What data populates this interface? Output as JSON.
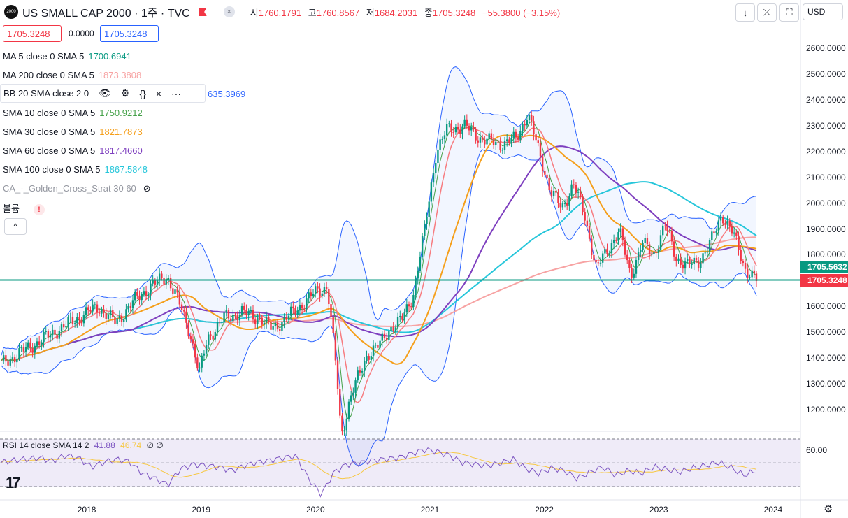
{
  "header": {
    "logo_text": "2000",
    "title": "US SMALL CAP 2000 · 1주 · TVC",
    "close_btn": "×",
    "ohlc": [
      {
        "k": "시",
        "v": "1760.1791"
      },
      {
        "k": "고",
        "v": "1760.8567"
      },
      {
        "k": "저",
        "v": "1684.2031"
      },
      {
        "k": "종",
        "v": "1705.3248"
      }
    ],
    "change": "−55.3800 (−3.15%)"
  },
  "toolbar": {
    "down": "↓",
    "collapse": "⤫",
    "fullscreen": "⛶",
    "currency": "USD"
  },
  "price_boxes": {
    "sell": "1705.3248",
    "spread": "0.0000",
    "buy": "1705.3248"
  },
  "legend": {
    "ma5": {
      "label": "MA 5 close 0 SMA 5",
      "value": "1700.6941"
    },
    "ma200": {
      "label": "MA 200 close 0 SMA 5",
      "value": "1873.3808"
    },
    "bb": {
      "label": "BB 20 SMA close 2 0",
      "value": "635.3969",
      "icons": [
        "👁",
        "⚙",
        "{}",
        "×",
        "···"
      ]
    },
    "sma10": {
      "label": "SMA 10 close 0 SMA 5",
      "value": "1750.9212"
    },
    "sma30": {
      "label": "SMA 30 close 0 SMA 5",
      "value": "1821.7873"
    },
    "sma60": {
      "label": "SMA 60 close 0 SMA 5",
      "value": "1817.4660"
    },
    "sma100": {
      "label": "SMA 100 close 0 SMA 5",
      "value": "1867.5848"
    },
    "strat": {
      "label": "CA_-_Golden_Cross_Strat 30 60"
    },
    "volume": {
      "label": "볼륨",
      "warn": "!"
    },
    "collapse": "^"
  },
  "rsi_legend": {
    "label": "RSI 14 close SMA 14 2",
    "v1": "41.88",
    "v2": "46.74",
    "v3": "∅ ∅"
  },
  "rsi_axis": {
    "level": "60.00"
  },
  "price_axis": [
    "2600.0000",
    "2500.0000",
    "2400.0000",
    "2300.0000",
    "2200.0000",
    "2100.0000",
    "2000.0000",
    "1900.0000",
    "1800.0000",
    "1700.0000",
    "1600.0000",
    "1500.0000",
    "1400.0000",
    "1300.0000",
    "1200.0000"
  ],
  "price_values": [
    2600,
    2500,
    2400,
    2300,
    2200,
    2100,
    2000,
    1900,
    1800,
    1700,
    1600,
    1500,
    1400,
    1300,
    1200
  ],
  "time_axis": [
    {
      "label": "2018",
      "year": 2018
    },
    {
      "label": "2019",
      "year": 2019
    },
    {
      "label": "2020",
      "year": 2020
    },
    {
      "label": "2021",
      "year": 2021
    },
    {
      "label": "2022",
      "year": 2022
    },
    {
      "label": "2023",
      "year": 2023
    },
    {
      "label": "2024",
      "year": 2024
    }
  ],
  "tags": {
    "sma": "1705.5632",
    "last": "1705.3248"
  },
  "tv_logo": "17",
  "colors": {
    "red": "#f23645",
    "green": "#089981",
    "ma5": "#089981",
    "ma200": "#f7a3a3",
    "bb": "#2962ff",
    "sma10": "#43a047",
    "sma30": "#f59f1b",
    "sma60": "#7e3fbf",
    "sma100": "#26c6da",
    "rsi": "#7e57c2"
  },
  "chart_data": {
    "type": "candlestick",
    "x_range": [
      2017.25,
      2023.85
    ],
    "y_range": [
      1120,
      2680
    ],
    "points": [
      [
        2017.25,
        1380
      ],
      [
        2017.4,
        1420
      ],
      [
        2017.55,
        1460
      ],
      [
        2017.7,
        1500
      ],
      [
        2017.85,
        1540
      ],
      [
        2018.0,
        1580
      ],
      [
        2018.1,
        1600
      ],
      [
        2018.25,
        1540
      ],
      [
        2018.4,
        1620
      ],
      [
        2018.55,
        1680
      ],
      [
        2018.7,
        1720
      ],
      [
        2018.8,
        1620
      ],
      [
        2018.9,
        1500
      ],
      [
        2018.98,
        1340
      ],
      [
        2019.05,
        1480
      ],
      [
        2019.2,
        1560
      ],
      [
        2019.35,
        1580
      ],
      [
        2019.5,
        1560
      ],
      [
        2019.6,
        1520
      ],
      [
        2019.7,
        1540
      ],
      [
        2019.8,
        1580
      ],
      [
        2019.9,
        1620
      ],
      [
        2020.0,
        1660
      ],
      [
        2020.1,
        1680
      ],
      [
        2020.18,
        1350
      ],
      [
        2020.22,
        1100
      ],
      [
        2020.3,
        1250
      ],
      [
        2020.45,
        1420
      ],
      [
        2020.55,
        1450
      ],
      [
        2020.65,
        1520
      ],
      [
        2020.75,
        1550
      ],
      [
        2020.85,
        1650
      ],
      [
        2020.95,
        1900
      ],
      [
        2021.05,
        2200
      ],
      [
        2021.15,
        2290
      ],
      [
        2021.3,
        2300
      ],
      [
        2021.45,
        2250
      ],
      [
        2021.6,
        2230
      ],
      [
        2021.75,
        2250
      ],
      [
        2021.85,
        2350
      ],
      [
        2021.95,
        2200
      ],
      [
        2022.05,
        2050
      ],
      [
        2022.15,
        1980
      ],
      [
        2022.25,
        2080
      ],
      [
        2022.35,
        1950
      ],
      [
        2022.45,
        1750
      ],
      [
        2022.55,
        1820
      ],
      [
        2022.65,
        1900
      ],
      [
        2022.75,
        1720
      ],
      [
        2022.85,
        1850
      ],
      [
        2022.95,
        1800
      ],
      [
        2023.05,
        1920
      ],
      [
        2023.15,
        1790
      ],
      [
        2023.25,
        1760
      ],
      [
        2023.35,
        1780
      ],
      [
        2023.45,
        1850
      ],
      [
        2023.55,
        1960
      ],
      [
        2023.65,
        1880
      ],
      [
        2023.75,
        1750
      ],
      [
        2023.85,
        1705
      ]
    ],
    "last": 1705.3248,
    "rsi": [
      55,
      58,
      60,
      62,
      57,
      66,
      62,
      48,
      55,
      60,
      56,
      38,
      30,
      20,
      45,
      52,
      50,
      48,
      42,
      50,
      55,
      58,
      62,
      65,
      30,
      5,
      40,
      52,
      54,
      58,
      60,
      62,
      68,
      75,
      72,
      66,
      55,
      52,
      50,
      54,
      60,
      45,
      38,
      46,
      42,
      30,
      40,
      48,
      35,
      42,
      38,
      48,
      44,
      40,
      46,
      50,
      55,
      47,
      35,
      41.88
    ],
    "rsi_levels": [
      70,
      50,
      30
    ]
  }
}
